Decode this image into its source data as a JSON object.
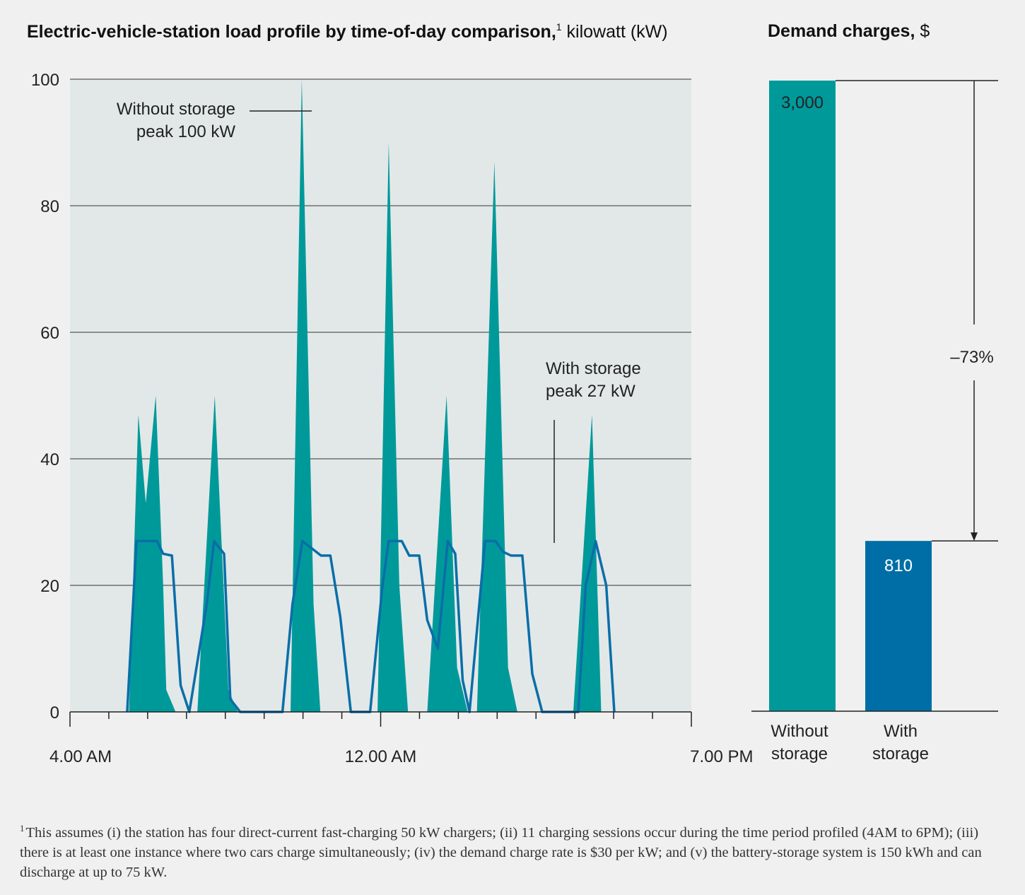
{
  "left_title": {
    "bold": "Electric-vehicle-station load profile by time-of-day comparison,",
    "footnote_mark": "1",
    "unit": " kilowatt (kW)"
  },
  "right_title": {
    "bold": "Demand charges,",
    "unit": " $"
  },
  "footnote": {
    "mark": "1",
    "text": "This assumes (i) the station has four direct-current fast-charging 50 kW chargers; (ii) 11 charging sessions occur during the time period profiled (4AM to 6PM); (iii) there is at least one instance where two cars charge simultaneously; (iv) the demand charge rate is $30 per kW; and (v) the battery-storage system is 150 kWh and can discharge at up to 75 kW."
  },
  "colors": {
    "teal": "#00999a",
    "blue": "#0a6ea8",
    "bar_blue": "#006ea6",
    "plot_bg": "#e2e8e8",
    "page_bg": "#f0f0f0"
  },
  "chart_data": [
    {
      "type": "area",
      "y_ticks": [
        0,
        20,
        40,
        60,
        80,
        100
      ],
      "ylim": [
        0,
        100
      ],
      "xlim": [
        0,
        1
      ],
      "grid": true,
      "x_tick_labels": [
        "4.00 AM",
        "12.00 AM",
        "7.00 PM"
      ],
      "x_tick_label_positions": [
        0,
        0.5,
        0.96
      ],
      "x_minor_ticks": 16,
      "annotations": [
        {
          "lines": [
            "Without storage",
            "peak 100 kW"
          ]
        },
        {
          "lines": [
            "With storage",
            "peak 27 kW"
          ]
        }
      ],
      "series": [
        {
          "kind": "area",
          "points": [
            [
              0.095,
              0
            ],
            [
              0.11,
              47
            ],
            [
              0.122,
              33
            ],
            [
              0.138,
              50
            ],
            [
              0.15,
              20
            ],
            [
              0.155,
              3.5
            ],
            [
              0.17,
              0
            ],
            [
              0.095,
              0
            ],
            [
              0.205,
              0
            ],
            [
              0.233,
              50
            ],
            [
              0.255,
              3.5
            ],
            [
              0.27,
              0
            ],
            [
              0.355,
              0
            ],
            [
              0.373,
              100
            ],
            [
              0.392,
              17
            ],
            [
              0.403,
              0
            ],
            [
              0.495,
              0
            ],
            [
              0.513,
              90
            ],
            [
              0.53,
              20
            ],
            [
              0.544,
              0
            ],
            [
              0.575,
              0
            ],
            [
              0.606,
              50
            ],
            [
              0.623,
              7
            ],
            [
              0.64,
              0
            ],
            [
              0.655,
              0
            ],
            [
              0.683,
              87
            ],
            [
              0.705,
              7
            ],
            [
              0.72,
              0
            ],
            [
              0.81,
              0
            ],
            [
              0.84,
              47
            ],
            [
              0.855,
              0
            ]
          ]
        },
        {
          "kind": "line",
          "points": [
            [
              0.092,
              0
            ],
            [
              0.107,
              27
            ],
            [
              0.14,
              27
            ],
            [
              0.15,
              25
            ],
            [
              0.164,
              24.7
            ],
            [
              0.178,
              4.2
            ],
            [
              0.192,
              0
            ],
            [
              0.22,
              17
            ],
            [
              0.232,
              27
            ],
            [
              0.248,
              25
            ],
            [
              0.258,
              2
            ],
            [
              0.274,
              0
            ],
            [
              0.342,
              0
            ],
            [
              0.358,
              17
            ],
            [
              0.374,
              27
            ],
            [
              0.387,
              26
            ],
            [
              0.404,
              24.7
            ],
            [
              0.419,
              24.7
            ],
            [
              0.435,
              15
            ],
            [
              0.452,
              0
            ],
            [
              0.483,
              0
            ],
            [
              0.503,
              20
            ],
            [
              0.513,
              27
            ],
            [
              0.534,
              27
            ],
            [
              0.546,
              24.7
            ],
            [
              0.562,
              24.7
            ],
            [
              0.575,
              14.5
            ],
            [
              0.592,
              10
            ],
            [
              0.608,
              27
            ],
            [
              0.62,
              25
            ],
            [
              0.632,
              5
            ],
            [
              0.643,
              0
            ],
            [
              0.668,
              27
            ],
            [
              0.685,
              27
            ],
            [
              0.697,
              25.3
            ],
            [
              0.71,
              24.7
            ],
            [
              0.728,
              24.7
            ],
            [
              0.744,
              6
            ],
            [
              0.76,
              0
            ],
            [
              0.818,
              0
            ],
            [
              0.83,
              20
            ],
            [
              0.846,
              27
            ],
            [
              0.863,
              20
            ],
            [
              0.876,
              0
            ]
          ]
        }
      ]
    },
    {
      "type": "bar",
      "categories": [
        "Without storage",
        "With storage"
      ],
      "category_lines": [
        [
          "Without",
          "storage"
        ],
        [
          "With",
          "storage"
        ]
      ],
      "values": [
        3000,
        810
      ],
      "value_labels": [
        "3,000",
        "810"
      ],
      "ylim": [
        0,
        3000
      ],
      "change_label": "–73%"
    }
  ]
}
